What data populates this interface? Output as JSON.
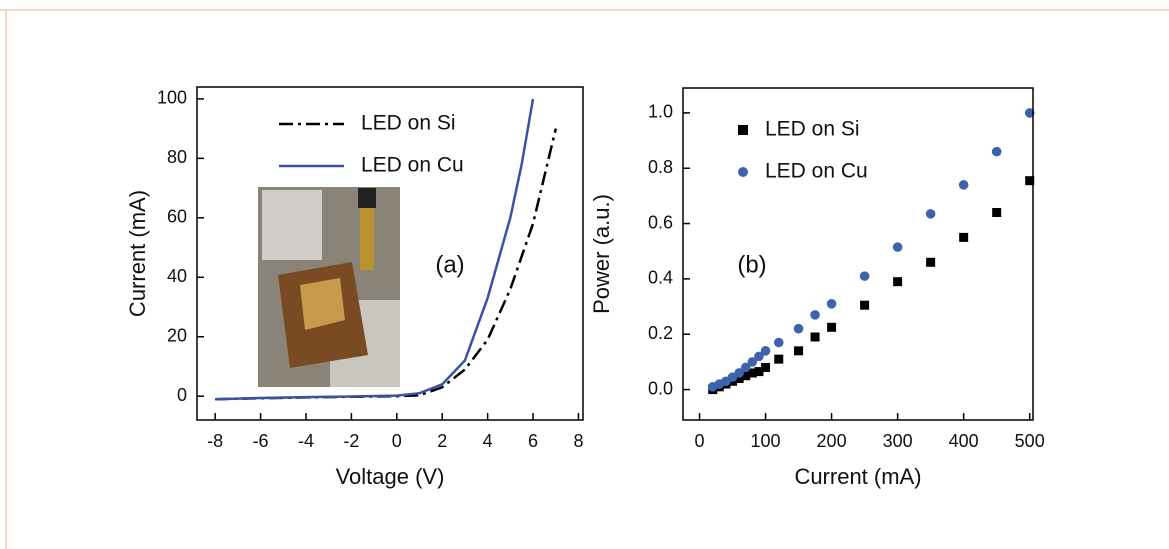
{
  "chart_data": [
    {
      "type": "line",
      "xlabel": "Voltage (V)",
      "ylabel": "Current (mA)",
      "annotation": "(a)",
      "xlim": [
        -8.8,
        8.2
      ],
      "ylim": [
        -8,
        104
      ],
      "xticks": [
        -8,
        -6,
        -4,
        -2,
        0,
        2,
        4,
        6,
        8
      ],
      "yticks": [
        0,
        20,
        40,
        60,
        80,
        100
      ],
      "legend": "upper left",
      "grid": false,
      "series": [
        {
          "name": "LED on Si",
          "color": "#000000",
          "linestyle": "dashdot",
          "x": [
            -8,
            -6,
            -4,
            -2,
            0,
            1,
            2,
            3,
            4,
            5,
            6,
            7
          ],
          "y": [
            -1,
            -0.7,
            -0.4,
            -0.2,
            0,
            0.3,
            3,
            9,
            19,
            36,
            58,
            90
          ]
        },
        {
          "name": "LED on Cu",
          "color": "#3a52a3",
          "linestyle": "solid",
          "x": [
            -8,
            -6,
            -4,
            -2,
            0,
            1,
            2,
            3,
            4,
            5,
            5.5,
            6
          ],
          "y": [
            -1,
            -0.6,
            -0.3,
            -0.1,
            0.2,
            1,
            4,
            12,
            33,
            60,
            78,
            100
          ]
        }
      ]
    },
    {
      "type": "scatter",
      "xlabel": "Current (mA)",
      "ylabel": "Power (a.u.)",
      "annotation": "(b)",
      "xlim": [
        -25,
        505
      ],
      "ylim": [
        -0.11,
        1.09
      ],
      "xticks": [
        0,
        100,
        200,
        300,
        400,
        500
      ],
      "yticks": [
        {
          "value": 0,
          "label": "0.0"
        },
        0.2,
        0.4,
        0.6,
        0.8,
        {
          "value": 1,
          "label": "1.0"
        }
      ],
      "legend": "upper left",
      "grid": false,
      "x": [
        20,
        30,
        40,
        50,
        60,
        70,
        80,
        90,
        100,
        120,
        150,
        175,
        200,
        250,
        300,
        350,
        400,
        450,
        500
      ],
      "series": [
        {
          "name": "LED on Si",
          "color": "#000000",
          "marker": "square",
          "values": [
            0,
            0.01,
            0.02,
            0.03,
            0.04,
            0.05,
            0.06,
            0.065,
            0.08,
            0.11,
            0.14,
            0.19,
            0.225,
            0.305,
            0.39,
            0.46,
            0.55,
            0.64,
            0.755
          ]
        },
        {
          "name": "LED on Cu",
          "color": "#3f63ab",
          "marker": "circle",
          "values": [
            0.01,
            0.02,
            0.03,
            0.045,
            0.06,
            0.08,
            0.1,
            0.12,
            0.14,
            0.17,
            0.22,
            0.27,
            0.31,
            0.41,
            0.515,
            0.635,
            0.74,
            0.86,
            1
          ]
        }
      ]
    }
  ]
}
